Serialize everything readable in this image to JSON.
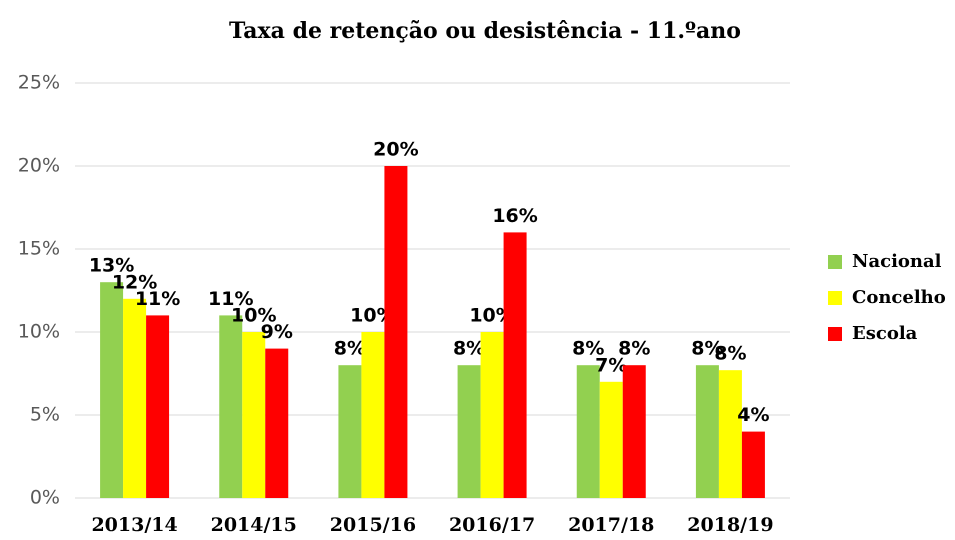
{
  "chart_data": {
    "type": "bar",
    "title": "Taxa de retenção ou desistência - 11.ºano",
    "categories": [
      "2013/14",
      "2014/15",
      "2015/16",
      "2016/17",
      "2017/18",
      "2018/19"
    ],
    "series": [
      {
        "name": "Nacional",
        "color": "#92d050",
        "values": [
          13,
          11,
          8,
          8,
          8,
          8
        ],
        "value_labels": [
          "13%",
          "11%",
          "8%",
          "8%",
          "8%",
          "8%"
        ]
      },
      {
        "name": "Concelho",
        "color": "#ffff00",
        "values": [
          12,
          10,
          10,
          10,
          7,
          7.7
        ],
        "value_labels": [
          "12%",
          "10%",
          "10%",
          "10%",
          "7%",
          "8%"
        ]
      },
      {
        "name": "Escola",
        "color": "#ff0000",
        "values": [
          11,
          9,
          20,
          16,
          8,
          4
        ],
        "value_labels": [
          "11%",
          "9%",
          "20%",
          "16%",
          "8%",
          "4%"
        ]
      }
    ],
    "ylim": [
      0,
      25
    ],
    "yticks": [
      {
        "value": 0,
        "label": "0%"
      },
      {
        "value": 5,
        "label": "5%"
      },
      {
        "value": 10,
        "label": "10%"
      },
      {
        "value": 15,
        "label": "15%"
      },
      {
        "value": 20,
        "label": "20%"
      },
      {
        "value": 25,
        "label": "25%"
      }
    ],
    "grid": true,
    "legend": "right"
  }
}
